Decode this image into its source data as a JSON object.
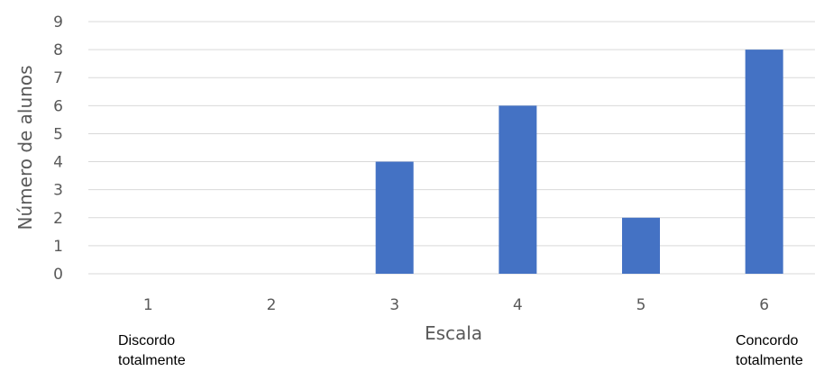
{
  "chart_data": {
    "type": "bar",
    "categories": [
      "1",
      "2",
      "3",
      "4",
      "5",
      "6"
    ],
    "values": [
      0,
      0,
      4,
      6,
      2,
      8
    ],
    "title": "",
    "xlabel": "Escala",
    "ylabel": "Número de alunos",
    "ylim": [
      0,
      9
    ],
    "yticks": [
      "0",
      "1",
      "2",
      "3",
      "4",
      "5",
      "6",
      "7",
      "8",
      "9"
    ],
    "grid": true,
    "legend": "none",
    "bar_color": "#4472C4",
    "grid_color": "#D9D9D9"
  },
  "annotations": {
    "left": [
      "Discordo",
      "totalmente"
    ],
    "right": [
      "Concordo",
      "totalmente"
    ]
  }
}
